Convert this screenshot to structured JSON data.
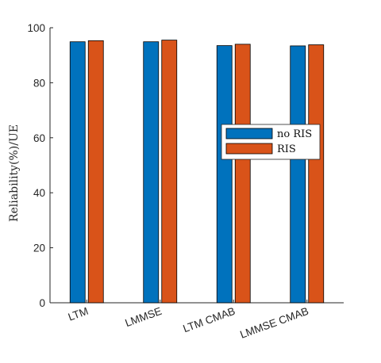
{
  "chart_data": {
    "type": "bar",
    "categories": [
      "LTM",
      "LMMSE",
      "LTM CMAB",
      "LMMSE CMAB"
    ],
    "series": [
      {
        "name": "no RIS",
        "color": "#0072BD",
        "values": [
          94.9,
          94.9,
          93.5,
          93.4
        ]
      },
      {
        "name": "RIS",
        "color": "#D95319",
        "values": [
          95.3,
          95.5,
          94.0,
          93.8
        ]
      }
    ],
    "ylabel": "Reliability(%)/UE",
    "xlabel": "",
    "ylim": [
      0,
      100
    ],
    "yticks": [
      0,
      20,
      40,
      60,
      80,
      100
    ],
    "grid": false,
    "legend_position": "right"
  }
}
